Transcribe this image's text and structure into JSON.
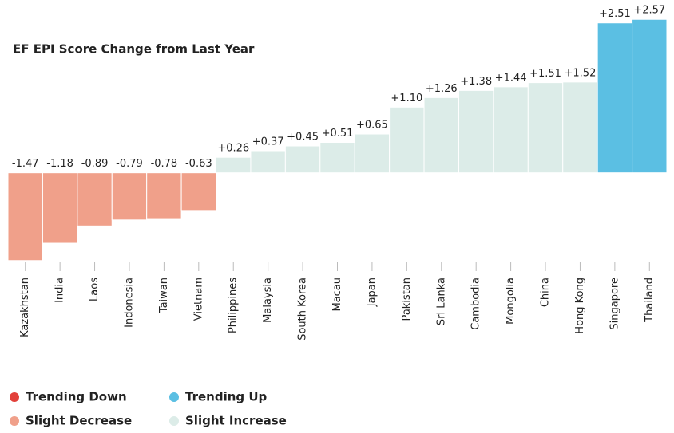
{
  "chart_data": {
    "type": "bar",
    "title": "EF EPI Score Change from Last Year",
    "categories": [
      "Kazakhstan",
      "India",
      "Laos",
      "Indonesia",
      "Taiwan",
      "Vietnam",
      "Philippines",
      "Malaysia",
      "South Korea",
      "Macau",
      "Japan",
      "Pakistan",
      "Sri Lanka",
      "Cambodia",
      "Mongolia",
      "China",
      "Hong Kong",
      "Singapore",
      "Thailand"
    ],
    "values": [
      -1.47,
      -1.18,
      -0.89,
      -0.79,
      -0.78,
      -0.63,
      0.26,
      0.37,
      0.45,
      0.51,
      0.65,
      1.1,
      1.26,
      1.38,
      1.44,
      1.51,
      1.52,
      2.51,
      2.57
    ],
    "value_labels": [
      "-1.47",
      "-1.18",
      "-0.89",
      "-0.79",
      "-0.78",
      "-0.63",
      "+0.26",
      "+0.37",
      "+0.45",
      "+0.51",
      "+0.65",
      "+1.10",
      "+1.26",
      "+1.38",
      "+1.44",
      "+1.51",
      "+1.52",
      "+2.51",
      "+2.57"
    ],
    "legend": [
      {
        "name": "Trending Down",
        "color": "#e2403a"
      },
      {
        "name": "Trending Up",
        "color": "#5bbfe3"
      },
      {
        "name": "Slight Decrease",
        "color": "#f0a08a"
      },
      {
        "name": "Slight Increase",
        "color": "#dcece8"
      }
    ],
    "groups": [
      2,
      2,
      2,
      2,
      2,
      2,
      3,
      3,
      3,
      3,
      3,
      3,
      3,
      3,
      3,
      3,
      3,
      1,
      1
    ],
    "ylim": [
      -1.5,
      2.6
    ]
  }
}
